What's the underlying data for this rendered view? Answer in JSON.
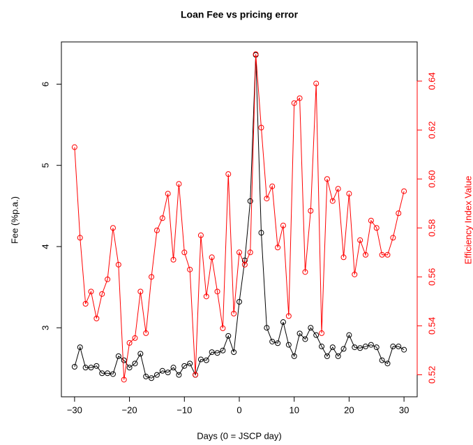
{
  "chart_data": {
    "type": "line",
    "title": "Loan Fee vs pricing error",
    "x_label": "Days (0 = JSCP day)",
    "y_label": "Fee (%p.a.)",
    "y2_label": "Efficiency Index Value",
    "x": [
      -30,
      -29,
      -28,
      -27,
      -26,
      -25,
      -24,
      -23,
      -22,
      -21,
      -20,
      -19,
      -18,
      -17,
      -16,
      -15,
      -14,
      -13,
      -12,
      -11,
      -10,
      -9,
      -8,
      -7,
      -6,
      -5,
      -4,
      -3,
      -2,
      -1,
      0,
      1,
      2,
      3,
      4,
      5,
      6,
      7,
      8,
      9,
      10,
      11,
      12,
      13,
      14,
      15,
      16,
      17,
      18,
      19,
      20,
      21,
      22,
      23,
      24,
      25,
      26,
      27,
      28,
      29,
      30
    ],
    "series": [
      {
        "name": "Fee",
        "color": "#000000",
        "axis": "y",
        "values": [
          2.52,
          2.76,
          2.51,
          2.51,
          2.53,
          2.44,
          2.44,
          2.43,
          2.65,
          2.6,
          2.51,
          2.56,
          2.68,
          2.4,
          2.38,
          2.42,
          2.47,
          2.45,
          2.51,
          2.42,
          2.53,
          2.56,
          2.42,
          2.61,
          2.6,
          2.7,
          2.69,
          2.72,
          2.9,
          2.7,
          3.32,
          3.83,
          4.56,
          6.36,
          4.17,
          3.0,
          2.83,
          2.81,
          3.07,
          2.79,
          2.65,
          2.93,
          2.86,
          3.0,
          2.91,
          2.77,
          2.65,
          2.76,
          2.65,
          2.74,
          2.91,
          2.76,
          2.75,
          2.77,
          2.79,
          2.76,
          2.6,
          2.56,
          2.77,
          2.77,
          2.73
        ]
      },
      {
        "name": "Efficiency Index Value",
        "color": "#ff0000",
        "axis": "y2",
        "values": [
          0.613,
          0.576,
          0.549,
          0.554,
          0.543,
          0.553,
          0.559,
          0.58,
          0.565,
          0.518,
          0.533,
          0.535,
          0.554,
          0.537,
          0.56,
          0.579,
          0.584,
          0.594,
          0.567,
          0.598,
          0.57,
          0.563,
          0.52,
          0.577,
          0.552,
          0.568,
          0.554,
          0.539,
          0.602,
          0.545,
          0.57,
          0.565,
          0.57,
          0.651,
          0.621,
          0.592,
          0.597,
          0.572,
          0.581,
          0.544,
          0.631,
          0.633,
          0.562,
          0.587,
          0.639,
          0.537,
          0.6,
          0.591,
          0.596,
          0.568,
          0.594,
          0.561,
          0.575,
          0.569,
          0.583,
          0.58,
          0.569,
          0.569,
          0.576,
          0.586,
          0.595
        ]
      }
    ],
    "xlim": [
      -32.4,
      32.4
    ],
    "xticks": [
      {
        "value": -30,
        "label": "−30"
      },
      {
        "value": -20,
        "label": "−20"
      },
      {
        "value": -10,
        "label": "−10"
      },
      0,
      10,
      20,
      30
    ],
    "ylim": [
      2.15,
      6.52
    ],
    "yticks": [
      3,
      4,
      5,
      6
    ],
    "y2lim": [
      0.511,
      0.656
    ],
    "y2ticks": [
      0.52,
      0.54,
      0.56,
      0.58,
      0.6,
      0.62,
      0.64
    ]
  }
}
